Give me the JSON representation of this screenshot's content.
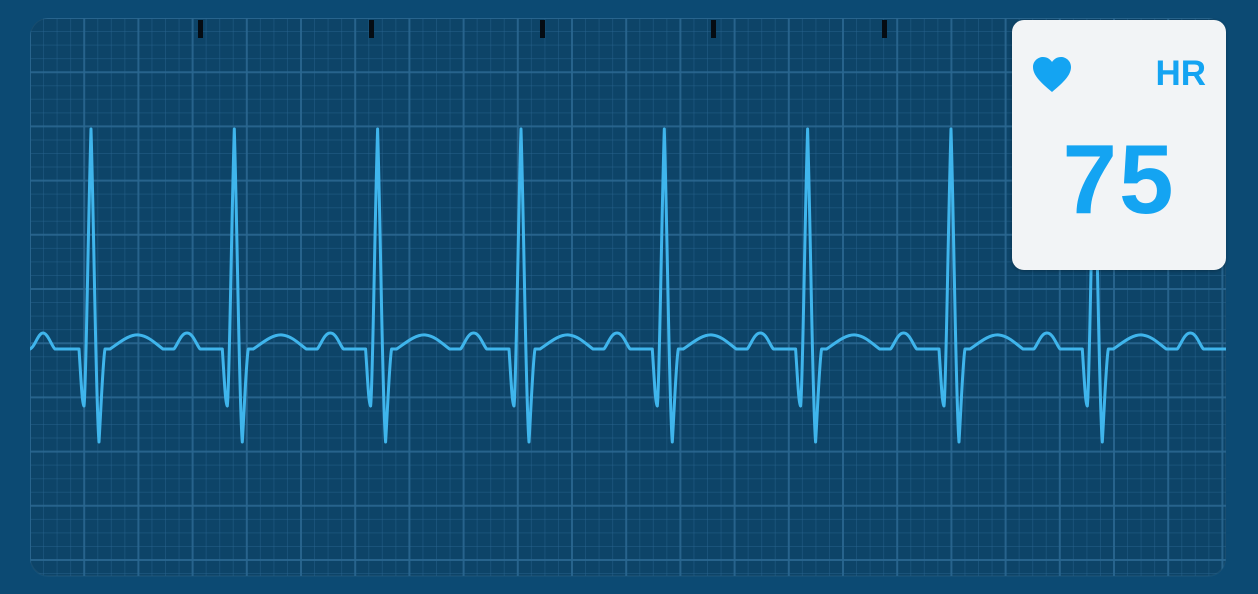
{
  "monitor": {
    "trace_color": "#3fb5ec",
    "grid_color": "#2a6790",
    "background_color": "#0d4468",
    "tick_marks": 5,
    "beats_visible": 8
  },
  "hr_panel": {
    "icon": "heart-icon",
    "label": "HR",
    "value": "75",
    "accent_color": "#14a4f2"
  }
}
